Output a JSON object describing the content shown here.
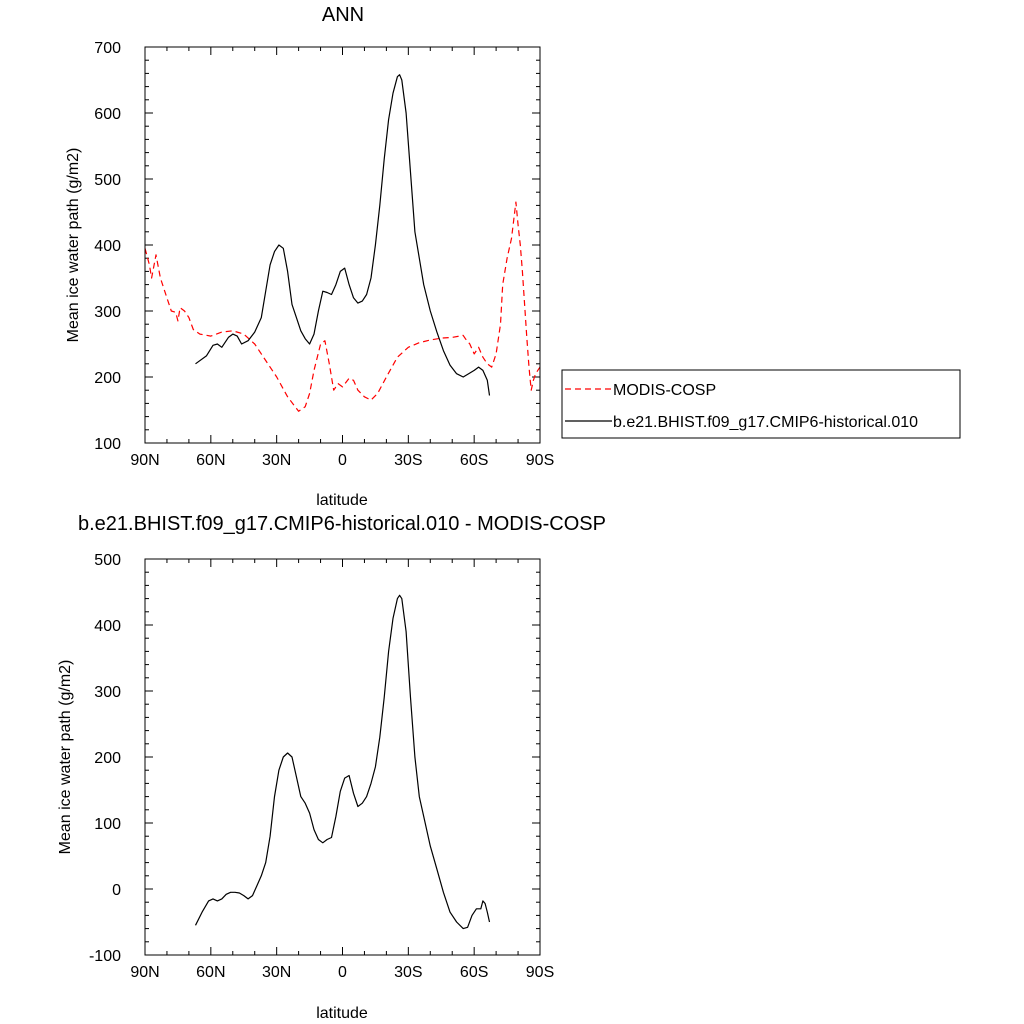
{
  "chart_data": [
    {
      "type": "line",
      "title": "ANN",
      "xlabel": "latitude",
      "ylabel": "Mean ice water path (g/m2)",
      "xlim": [
        -90,
        90
      ],
      "ylim": [
        100,
        700
      ],
      "x_tick_values": [
        -90,
        -60,
        -30,
        0,
        30,
        60,
        90
      ],
      "x_tick_labels": [
        "90N",
        "60N",
        "30N",
        "0",
        "30S",
        "60S",
        "90S"
      ],
      "y_ticks": [
        100,
        200,
        300,
        400,
        500,
        600,
        700
      ],
      "grid": false,
      "legend": {
        "placement": "right",
        "entries": [
          "MODIS-COSP",
          "b.e21.BHIST.f09_g17.CMIP6-historical.010"
        ]
      },
      "series": [
        {
          "name": "MODIS-COSP",
          "color": "#ff0000",
          "dash": "dashed",
          "x": [
            -90,
            -88,
            -87,
            -85,
            -83,
            -80,
            -78,
            -76,
            -75,
            -74,
            -72,
            -70,
            -68,
            -65,
            -60,
            -55,
            -50,
            -45,
            -40,
            -35,
            -30,
            -25,
            -20,
            -17,
            -15,
            -13,
            -10,
            -8,
            -6,
            -4,
            -2,
            0,
            3,
            5,
            7,
            10,
            13,
            16,
            20,
            25,
            30,
            35,
            40,
            45,
            50,
            55,
            56,
            58,
            60,
            62,
            64,
            66,
            68,
            70,
            72,
            73,
            75,
            77,
            79,
            80,
            81,
            82,
            83,
            84,
            85,
            86,
            87,
            88,
            90
          ],
          "y": [
            395,
            370,
            350,
            385,
            350,
            320,
            300,
            298,
            285,
            305,
            300,
            290,
            272,
            265,
            262,
            268,
            270,
            265,
            250,
            225,
            200,
            170,
            148,
            155,
            175,
            210,
            250,
            255,
            220,
            180,
            190,
            185,
            198,
            195,
            180,
            170,
            165,
            175,
            200,
            230,
            245,
            252,
            256,
            259,
            260,
            263,
            258,
            250,
            235,
            245,
            230,
            220,
            215,
            235,
            280,
            340,
            380,
            410,
            465,
            430,
            400,
            360,
            310,
            260,
            215,
            180,
            195,
            205,
            215
          ]
        },
        {
          "name": "b.e21.BHIST.f09_g17.CMIP6-historical.010",
          "color": "#000000",
          "dash": "solid",
          "x": [
            -67,
            -62,
            -59,
            -57,
            -55,
            -52,
            -50,
            -48,
            -46,
            -43,
            -40,
            -37,
            -35,
            -33,
            -31,
            -29,
            -27,
            -25,
            -23,
            -21,
            -19,
            -17,
            -15,
            -13,
            -11,
            -9,
            -7,
            -5,
            -3,
            -1,
            1,
            3,
            5,
            7,
            9,
            11,
            13,
            15,
            17,
            19,
            21,
            23,
            25,
            26,
            27,
            29,
            31,
            33,
            35,
            37,
            40,
            43,
            46,
            49,
            52,
            55,
            57,
            60,
            62,
            64,
            66,
            67
          ],
          "y": [
            220,
            232,
            248,
            250,
            245,
            260,
            265,
            262,
            250,
            255,
            268,
            290,
            330,
            370,
            390,
            400,
            395,
            360,
            310,
            290,
            270,
            258,
            250,
            265,
            300,
            330,
            328,
            325,
            340,
            360,
            365,
            340,
            320,
            312,
            315,
            325,
            350,
            400,
            460,
            530,
            590,
            630,
            655,
            658,
            650,
            600,
            510,
            420,
            380,
            340,
            300,
            268,
            240,
            218,
            205,
            200,
            204,
            210,
            215,
            210,
            195,
            172
          ]
        }
      ]
    },
    {
      "type": "line",
      "title": "b.e21.BHIST.f09_g17.CMIP6-historical.010 - MODIS-COSP",
      "xlabel": "latitude",
      "ylabel": "Mean ice water path (g/m2)",
      "xlim": [
        -90,
        90
      ],
      "ylim": [
        -100,
        500
      ],
      "x_tick_values": [
        -90,
        -60,
        -30,
        0,
        30,
        60,
        90
      ],
      "x_tick_labels": [
        "90N",
        "60N",
        "30N",
        "0",
        "30S",
        "60S",
        "90S"
      ],
      "y_ticks": [
        -100,
        0,
        100,
        200,
        300,
        400,
        500
      ],
      "grid": false,
      "series": [
        {
          "color": "#000000",
          "dash": "solid",
          "x": [
            -67,
            -64,
            -61,
            -59,
            -57,
            -55,
            -53,
            -51,
            -49,
            -47,
            -45,
            -43,
            -41,
            -39,
            -37,
            -35,
            -33,
            -31,
            -29,
            -27,
            -25,
            -23,
            -21,
            -19,
            -17,
            -15,
            -13,
            -11,
            -9,
            -7,
            -5,
            -3,
            -1,
            1,
            3,
            5,
            7,
            9,
            11,
            13,
            15,
            17,
            19,
            21,
            23,
            25,
            26,
            27,
            29,
            31,
            33,
            35,
            37,
            40,
            43,
            46,
            49,
            52,
            55,
            57,
            59,
            61,
            63,
            64,
            65,
            66,
            67
          ],
          "y": [
            -55,
            -35,
            -18,
            -15,
            -18,
            -15,
            -8,
            -5,
            -5,
            -6,
            -10,
            -15,
            -10,
            5,
            20,
            40,
            80,
            140,
            180,
            200,
            206,
            200,
            170,
            140,
            130,
            115,
            90,
            75,
            70,
            75,
            78,
            110,
            148,
            168,
            172,
            145,
            125,
            130,
            140,
            160,
            185,
            230,
            290,
            360,
            410,
            440,
            445,
            440,
            390,
            290,
            200,
            140,
            110,
            65,
            30,
            -5,
            -35,
            -50,
            -60,
            -58,
            -40,
            -30,
            -30,
            -18,
            -22,
            -35,
            -50
          ]
        }
      ]
    }
  ]
}
